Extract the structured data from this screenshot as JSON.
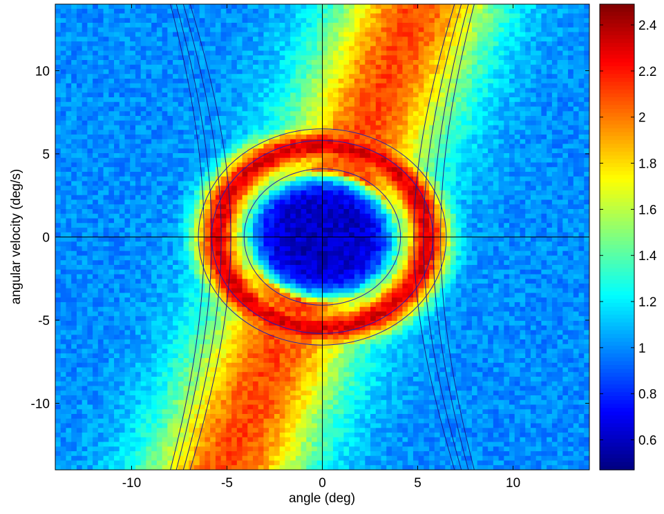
{
  "chart_data": {
    "type": "heatmap",
    "title": "",
    "xlabel": "angle (deg)",
    "ylabel": "angular velocity (deg/s)",
    "xlim": [
      -14,
      14
    ],
    "ylim": [
      -14,
      14
    ],
    "xticks": [
      -10,
      -5,
      0,
      5,
      10
    ],
    "yticks": [
      -10,
      -5,
      0,
      5,
      10
    ],
    "colorbar": {
      "range": [
        0.47,
        2.49
      ],
      "ticks": [
        0.6,
        0.8,
        1,
        1.2,
        1.4,
        1.6,
        1.8,
        2,
        2.2,
        2.4
      ],
      "colormap": "jet"
    },
    "colorscale": [
      "#00008f",
      "#0000ff",
      "#00ffff",
      "#ffff00",
      "#ff0000",
      "#800000"
    ],
    "grid": false,
    "axes_lines": {
      "x": 0,
      "y": 0
    },
    "features": {
      "inner_blue_region_center": [
        0,
        0
      ],
      "inner_blue_region_radius": 4.0,
      "high_density_ring_radius": 5.5,
      "background_level": 1.0,
      "core_level": 0.6,
      "ring_level": 2.3,
      "diagonal_band_slope_deg_per_deg": 2.8
    },
    "contours": [
      {
        "name": "circle",
        "center": [
          0,
          0
        ],
        "radius": 4.1
      },
      {
        "name": "circle",
        "center": [
          0,
          0
        ],
        "radius": 5.8
      },
      {
        "name": "circle",
        "center": [
          0,
          0
        ],
        "radius": 6.5
      },
      {
        "name": "hyperbola-left-right",
        "vertices": [
          4.8,
          5.3,
          5.8,
          6.2
        ]
      }
    ]
  }
}
